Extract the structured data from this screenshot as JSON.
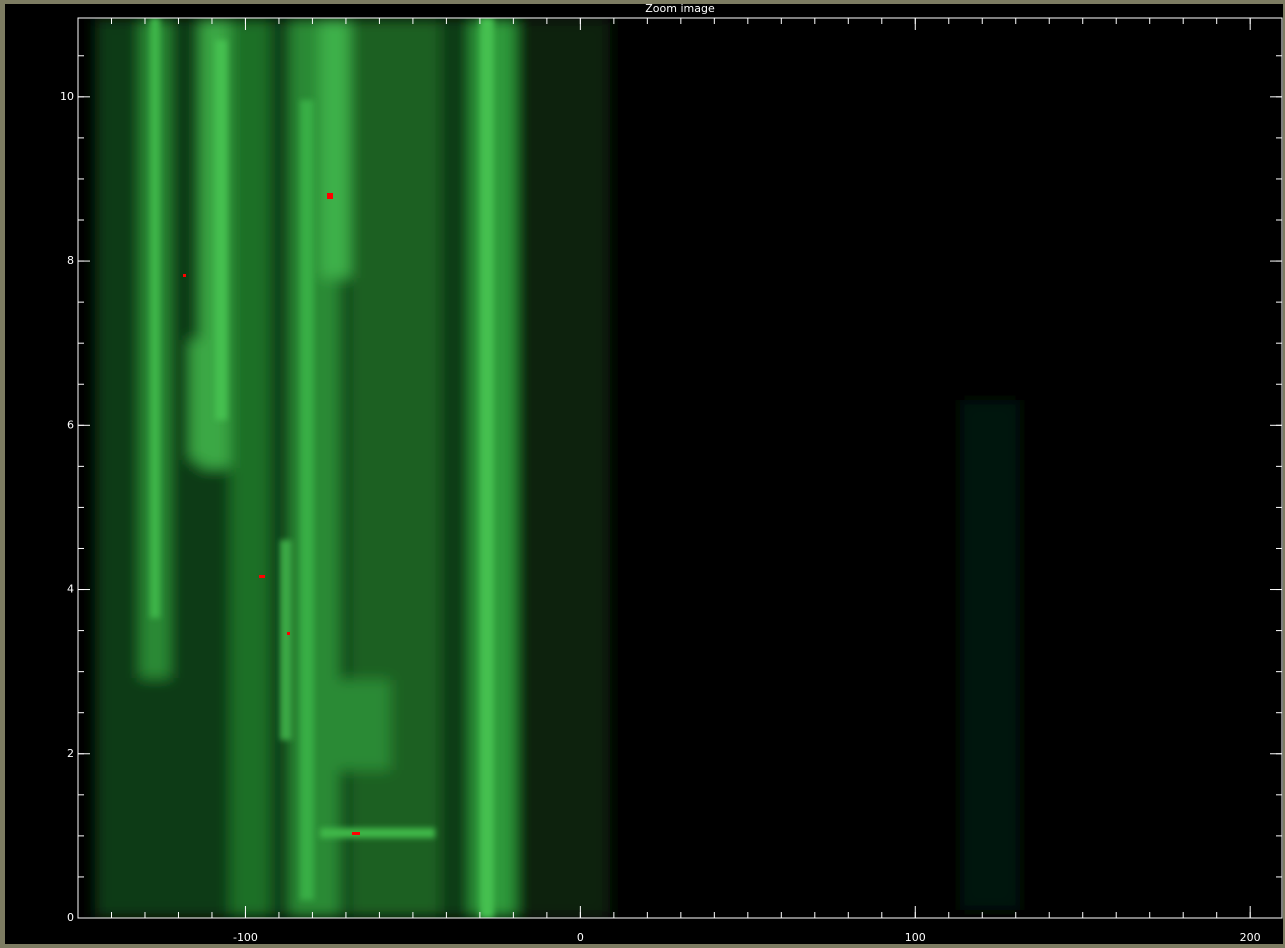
{
  "chart_data": {
    "type": "image",
    "title": "Zoom image",
    "xlim": [
      -150,
      209.5
    ],
    "xticks": [
      -100,
      0,
      100,
      200
    ],
    "ylim": [
      0,
      10.96
    ],
    "yticks": [
      0,
      2,
      4,
      6,
      8,
      10
    ]
  }
}
